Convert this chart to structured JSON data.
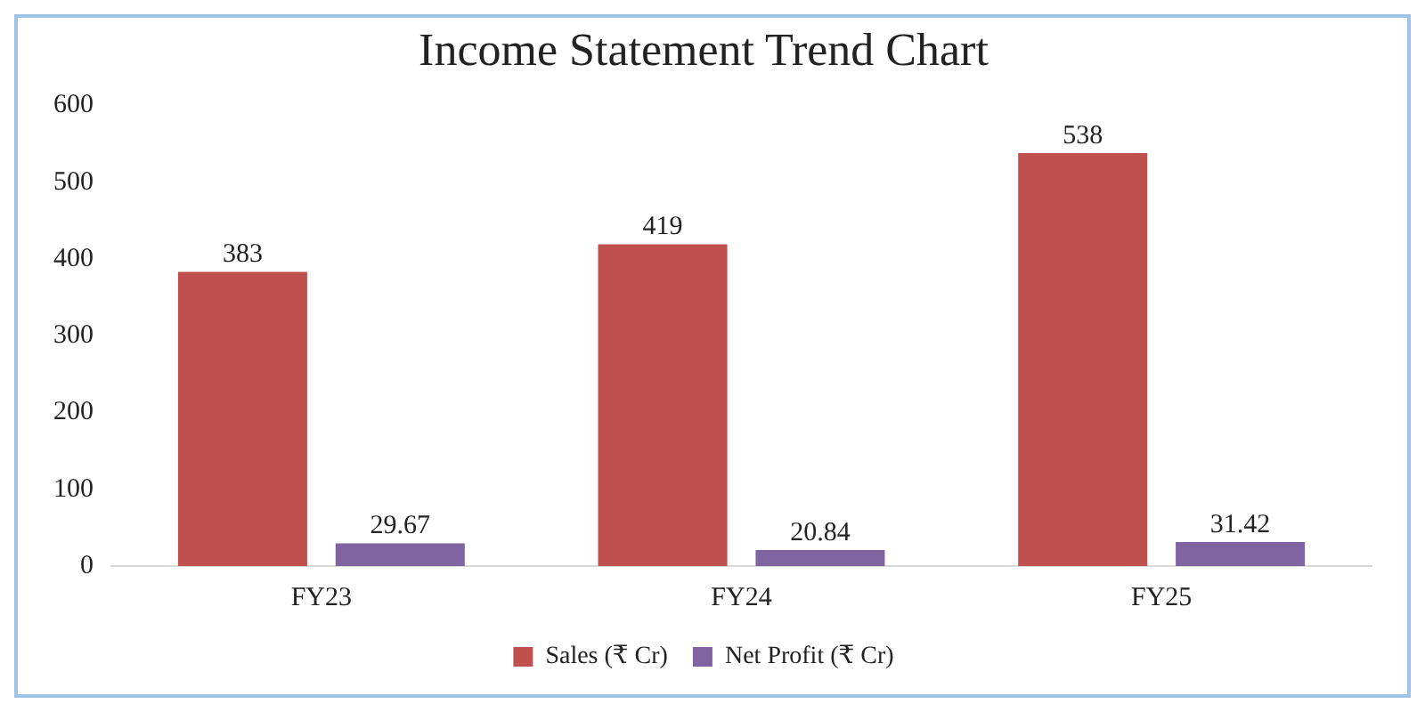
{
  "chart_data": {
    "type": "bar",
    "title": "Income Statement Trend Chart",
    "categories": [
      "FY23",
      "FY24",
      "FY25"
    ],
    "series": [
      {
        "name": "Sales (₹ Cr)",
        "color": "#c0504d",
        "values": [
          383,
          419,
          538
        ]
      },
      {
        "name": "Net Profit (₹ Cr)",
        "color": "#8064a2",
        "values": [
          29.67,
          20.84,
          31.42
        ]
      }
    ],
    "ylim": [
      0,
      600
    ],
    "yticks": [
      0,
      100,
      200,
      300,
      400,
      500,
      600
    ],
    "grid": false,
    "legend": "bottom",
    "data_labels": true
  }
}
